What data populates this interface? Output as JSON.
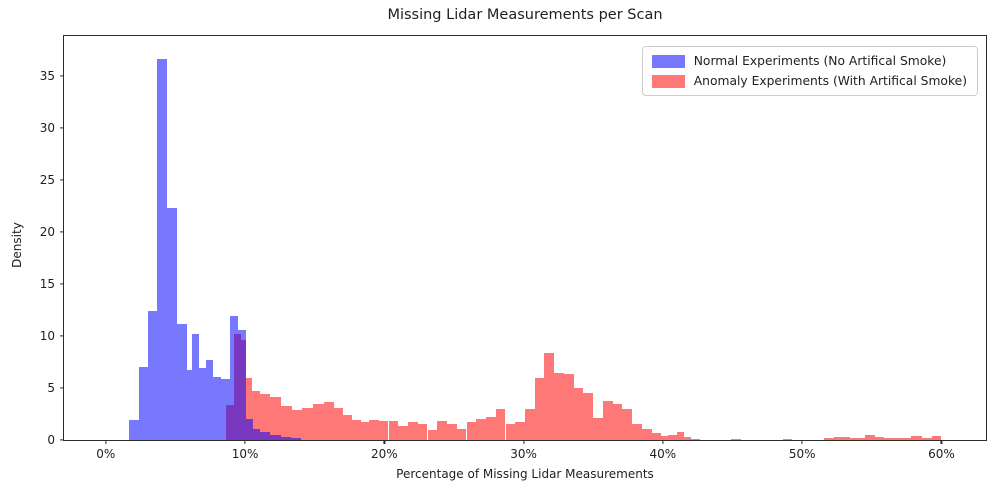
{
  "chart_data": {
    "type": "histogram",
    "title": "Missing Lidar Measurements per Scan",
    "xlabel": "Percentage of Missing Lidar Measurements",
    "ylabel": "Density",
    "grid": false,
    "legend_position": "upper right",
    "xlim_pct": [
      -3.0,
      63.2
    ],
    "ylim": [
      0,
      38.8
    ],
    "x_ticks": [
      {
        "value": 0,
        "label": "0%"
      },
      {
        "value": 10,
        "label": "10%"
      },
      {
        "value": 20,
        "label": "20%"
      },
      {
        "value": 30,
        "label": "30%"
      },
      {
        "value": 40,
        "label": "40%"
      },
      {
        "value": 50,
        "label": "50%"
      },
      {
        "value": 60,
        "label": "60%"
      }
    ],
    "y_ticks": [
      0,
      5,
      10,
      15,
      20,
      25,
      30,
      35
    ],
    "axis_color": "#2b2b2b",
    "bars_format": "[left_edge_percent, width_percent, density]",
    "series": [
      {
        "name": "Normal Experiments (No Artifical Smoke)",
        "color": "rgba(0,0,255,0.53)",
        "bars": [
          [
            1.7,
            0.7,
            1.9
          ],
          [
            2.4,
            0.6,
            7.0
          ],
          [
            3.0,
            0.7,
            12.4
          ],
          [
            3.7,
            0.7,
            36.6
          ],
          [
            4.4,
            0.7,
            22.3
          ],
          [
            5.1,
            0.7,
            11.1
          ],
          [
            5.8,
            0.4,
            6.7
          ],
          [
            6.2,
            0.5,
            10.2
          ],
          [
            6.7,
            0.5,
            6.9
          ],
          [
            7.2,
            0.5,
            7.7
          ],
          [
            7.7,
            0.6,
            6.1
          ],
          [
            8.3,
            0.6,
            5.9
          ],
          [
            8.9,
            0.6,
            11.9
          ],
          [
            9.5,
            0.6,
            10.6
          ],
          [
            10.1,
            0.5,
            2.0
          ],
          [
            10.6,
            0.5,
            1.05
          ],
          [
            11.1,
            0.7,
            0.8
          ],
          [
            11.8,
            0.8,
            0.5
          ],
          [
            12.6,
            0.7,
            0.3
          ],
          [
            13.3,
            0.7,
            0.2
          ]
        ]
      },
      {
        "name": "Anomaly Experiments (With Artifical Smoke)",
        "color": "rgba(255,0,0,0.53)",
        "bars": [
          [
            8.6,
            0.6,
            3.4
          ],
          [
            9.2,
            0.5,
            10.15
          ],
          [
            9.7,
            0.4,
            9.6
          ],
          [
            10.1,
            0.4,
            6.0
          ],
          [
            10.5,
            0.6,
            4.7
          ],
          [
            11.1,
            0.7,
            4.4
          ],
          [
            11.8,
            0.8,
            4.15
          ],
          [
            12.6,
            0.8,
            3.3
          ],
          [
            13.4,
            0.7,
            2.9
          ],
          [
            14.1,
            0.8,
            3.1
          ],
          [
            14.9,
            0.8,
            3.5
          ],
          [
            15.7,
            0.7,
            3.65
          ],
          [
            16.4,
            0.6,
            3.1
          ],
          [
            17.0,
            0.7,
            2.4
          ],
          [
            17.7,
            0.6,
            1.95
          ],
          [
            18.3,
            0.6,
            1.7
          ],
          [
            18.9,
            0.7,
            1.95
          ],
          [
            19.6,
            0.7,
            1.8
          ],
          [
            20.3,
            0.7,
            1.85
          ],
          [
            21.0,
            0.7,
            1.35
          ],
          [
            21.7,
            0.7,
            1.7
          ],
          [
            22.4,
            0.7,
            1.55
          ],
          [
            23.1,
            0.7,
            1.0
          ],
          [
            23.8,
            0.7,
            1.8
          ],
          [
            24.5,
            0.7,
            1.55
          ],
          [
            25.2,
            0.7,
            1.1
          ],
          [
            25.9,
            0.7,
            1.75
          ],
          [
            26.6,
            0.7,
            2.0
          ],
          [
            27.3,
            0.7,
            2.25
          ],
          [
            28.0,
            0.7,
            2.95
          ],
          [
            28.7,
            0.7,
            1.5
          ],
          [
            29.4,
            0.7,
            1.7
          ],
          [
            30.1,
            0.7,
            3.0
          ],
          [
            30.8,
            0.7,
            6.0
          ],
          [
            31.5,
            0.7,
            8.35
          ],
          [
            32.2,
            0.7,
            6.45
          ],
          [
            32.9,
            0.7,
            6.3
          ],
          [
            33.6,
            0.7,
            5.0
          ],
          [
            34.3,
            0.7,
            4.5
          ],
          [
            35.0,
            0.7,
            2.15
          ],
          [
            35.7,
            0.7,
            3.75
          ],
          [
            36.4,
            0.7,
            3.5
          ],
          [
            37.1,
            0.7,
            2.95
          ],
          [
            37.8,
            0.7,
            1.5
          ],
          [
            38.5,
            0.7,
            1.05
          ],
          [
            39.2,
            0.7,
            0.65
          ],
          [
            39.9,
            0.5,
            0.35
          ],
          [
            40.4,
            0.6,
            0.5
          ],
          [
            41.0,
            0.5,
            0.75
          ],
          [
            41.5,
            0.5,
            0.25
          ],
          [
            42.0,
            0.7,
            0.12
          ],
          [
            44.9,
            0.7,
            0.12
          ],
          [
            48.6,
            0.7,
            0.12
          ],
          [
            51.6,
            0.7,
            0.2
          ],
          [
            52.3,
            1.1,
            0.25
          ],
          [
            53.4,
            1.1,
            0.2
          ],
          [
            54.5,
            0.7,
            0.48
          ],
          [
            55.2,
            0.7,
            0.3
          ],
          [
            55.9,
            0.7,
            0.15
          ],
          [
            56.6,
            1.2,
            0.2
          ],
          [
            57.8,
            0.8,
            0.35
          ],
          [
            58.6,
            0.7,
            0.15
          ],
          [
            59.3,
            0.7,
            0.4
          ]
        ]
      }
    ]
  }
}
